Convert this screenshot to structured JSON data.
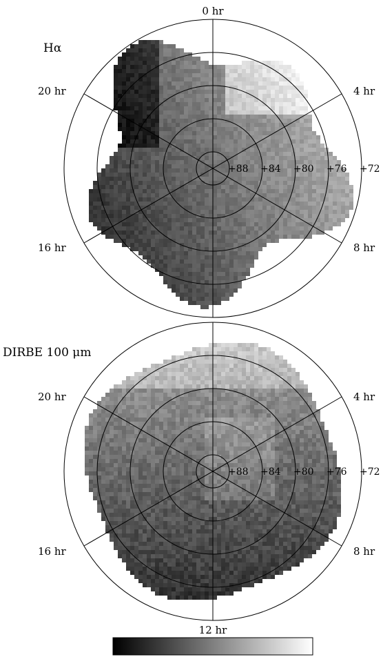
{
  "chart_data": [
    {
      "type": "heatmap",
      "title": "Hα",
      "projection": "polar (north celestial pole)",
      "ra_labels": [
        "0 hr",
        "4 hr",
        "8 hr",
        "16 hr",
        "20 hr"
      ],
      "dec_labels": [
        "+88",
        "+84",
        "+80",
        "+76",
        "+72"
      ],
      "colormap": "grayscale",
      "grid": true
    },
    {
      "type": "heatmap",
      "title": "DIRBE 100 μm",
      "projection": "polar (north celestial pole)",
      "ra_labels": [
        "4 hr",
        "8 hr",
        "12 hr",
        "16 hr",
        "20 hr"
      ],
      "dec_labels": [
        "+88",
        "+84",
        "+80",
        "+76",
        "+72"
      ],
      "colormap": "grayscale",
      "grid": true
    }
  ],
  "colorbar": {
    "colors": {
      "low": "#000000",
      "high": "#ffffff"
    }
  }
}
